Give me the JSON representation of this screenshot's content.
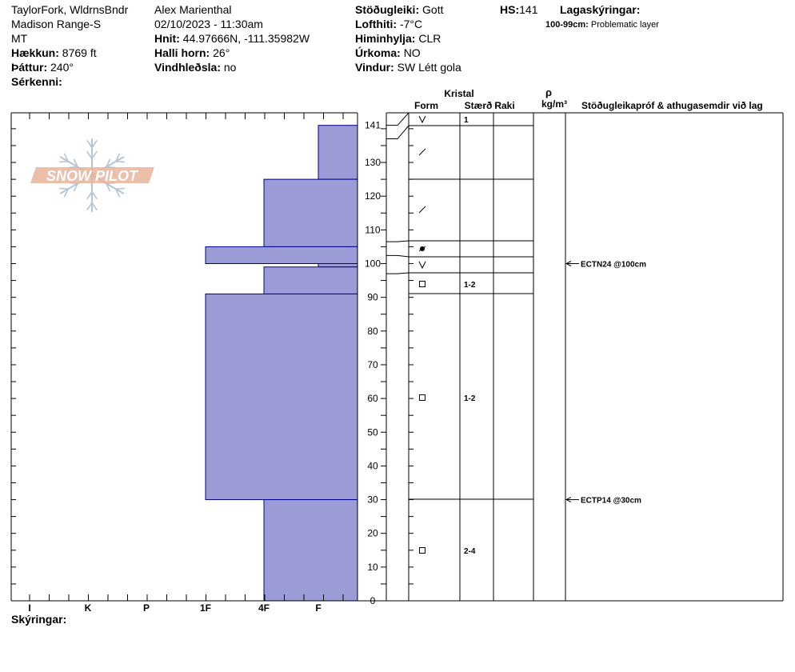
{
  "site": {
    "location": "TaylorFork, WldrnsBndr",
    "range": "Madison Range-S",
    "state": "MT",
    "elevation_label": "Hækkun:",
    "elevation": "8769 ft",
    "aspect_label": "Þáttur:",
    "aspect": "240°",
    "features_label": "Sérkenni:"
  },
  "observation": {
    "observer": "Alex Marienthal",
    "datetime": "02/10/2023 - 11:30am",
    "coords_label": "Hnit:",
    "coords": "44.97666N, -111.35982W",
    "slope_label": "Halli horn:",
    "slope": "26°",
    "wind_loading_label": "Vindhleðsla:",
    "wind_loading": "no"
  },
  "weather": {
    "stability_label": "Stöðugleiki:",
    "stability": "Gott",
    "air_temp_label": "Lofthiti:",
    "air_temp": "-7°C",
    "sky_label": "Himinhylja:",
    "sky": "CLR",
    "precip_label": "Úrkoma:",
    "precip": "NO",
    "wind_label": "Vindur:",
    "wind": "SW Létt gola"
  },
  "hs": {
    "label": "HS:",
    "value": "141"
  },
  "legend": {
    "title": "Lagaskýringar:",
    "code": "100-99cm:",
    "text": "Problematic layer"
  },
  "table_headers": {
    "crystal": "Kristal",
    "form": "Form",
    "size": "Stærð",
    "moisture": "Raki",
    "rho": "ρ",
    "density_unit": "kg/m³",
    "tests": "Stöðugleikapróf & athugasemdir við lag"
  },
  "logo_text": "SNOW PILOT",
  "footer": {
    "comments_label": "Skýringar:"
  },
  "colors": {
    "layer_fill": "#9b9bd6",
    "layer_stroke": "#00008b",
    "logo": "#e8b49a",
    "flake": "#b4c4d4"
  },
  "chart_data": {
    "type": "bar",
    "orientation": "horizontal",
    "x_axis": {
      "categories": [
        "I",
        "K",
        "P",
        "1F",
        "4F",
        "F"
      ],
      "direction": "hardness decreases to the right"
    },
    "y_axis": {
      "min": 0,
      "max": 145,
      "ticks": [
        0,
        10,
        20,
        30,
        40,
        50,
        60,
        70,
        80,
        90,
        100,
        110,
        120,
        130,
        141
      ]
    },
    "hardness_layers": [
      {
        "top": 141,
        "bottom": 125,
        "hardness": "F"
      },
      {
        "top": 125,
        "bottom": 105,
        "hardness": "4F"
      },
      {
        "top": 105,
        "bottom": 100,
        "hardness": "1F"
      },
      {
        "top": 100,
        "bottom": 99,
        "hardness": "F"
      },
      {
        "top": 99,
        "bottom": 91,
        "hardness": "4F"
      },
      {
        "top": 91,
        "bottom": 30,
        "hardness": "1F"
      },
      {
        "top": 30,
        "bottom": 0,
        "hardness": "4F"
      }
    ],
    "strata_boundaries": [
      141,
      137,
      125,
      106.5,
      102.4,
      97,
      91,
      30,
      0
    ],
    "grain_forms": [
      {
        "depth": 141,
        "symbol": "precip",
        "size": "1"
      },
      {
        "depth": 132,
        "symbol": "dfrag",
        "size": ""
      },
      {
        "depth": 116,
        "symbol": "dfrag",
        "size": ""
      },
      {
        "depth": 104,
        "symbol": "rounded",
        "size": ""
      },
      {
        "depth": 100,
        "symbol": "precip",
        "size": ""
      },
      {
        "depth": 94,
        "symbol": "faceted",
        "size": "1-2"
      },
      {
        "depth": 60,
        "symbol": "faceted",
        "size": "1-2"
      },
      {
        "depth": 15,
        "symbol": "faceted",
        "size": "2-4"
      }
    ],
    "stability_tests": [
      {
        "depth": 100,
        "label": "ECTN24 @100cm"
      },
      {
        "depth": 30,
        "label": "ECTP14 @30cm"
      }
    ]
  }
}
